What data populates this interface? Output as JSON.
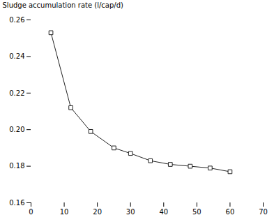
{
  "chart_data": {
    "type": "line",
    "x": [
      6,
      12,
      18,
      25,
      30,
      36,
      42,
      48,
      54,
      60
    ],
    "values": [
      0.253,
      0.212,
      0.199,
      0.19,
      0.187,
      0.183,
      0.181,
      0.18,
      0.179,
      0.177
    ],
    "xlim": [
      0,
      70
    ],
    "ylim": [
      0.16,
      0.26
    ],
    "xticks": [
      0,
      10,
      20,
      30,
      40,
      50,
      60,
      70
    ],
    "yticks": [
      0.16,
      0.18,
      {
        "value": 0.2,
        "label": "0.20"
      },
      0.22,
      0.24,
      0.26
    ],
    "ylabel": "Sludge accumulation rate (l/cap/d)",
    "color": "#222222",
    "marker": "square"
  }
}
